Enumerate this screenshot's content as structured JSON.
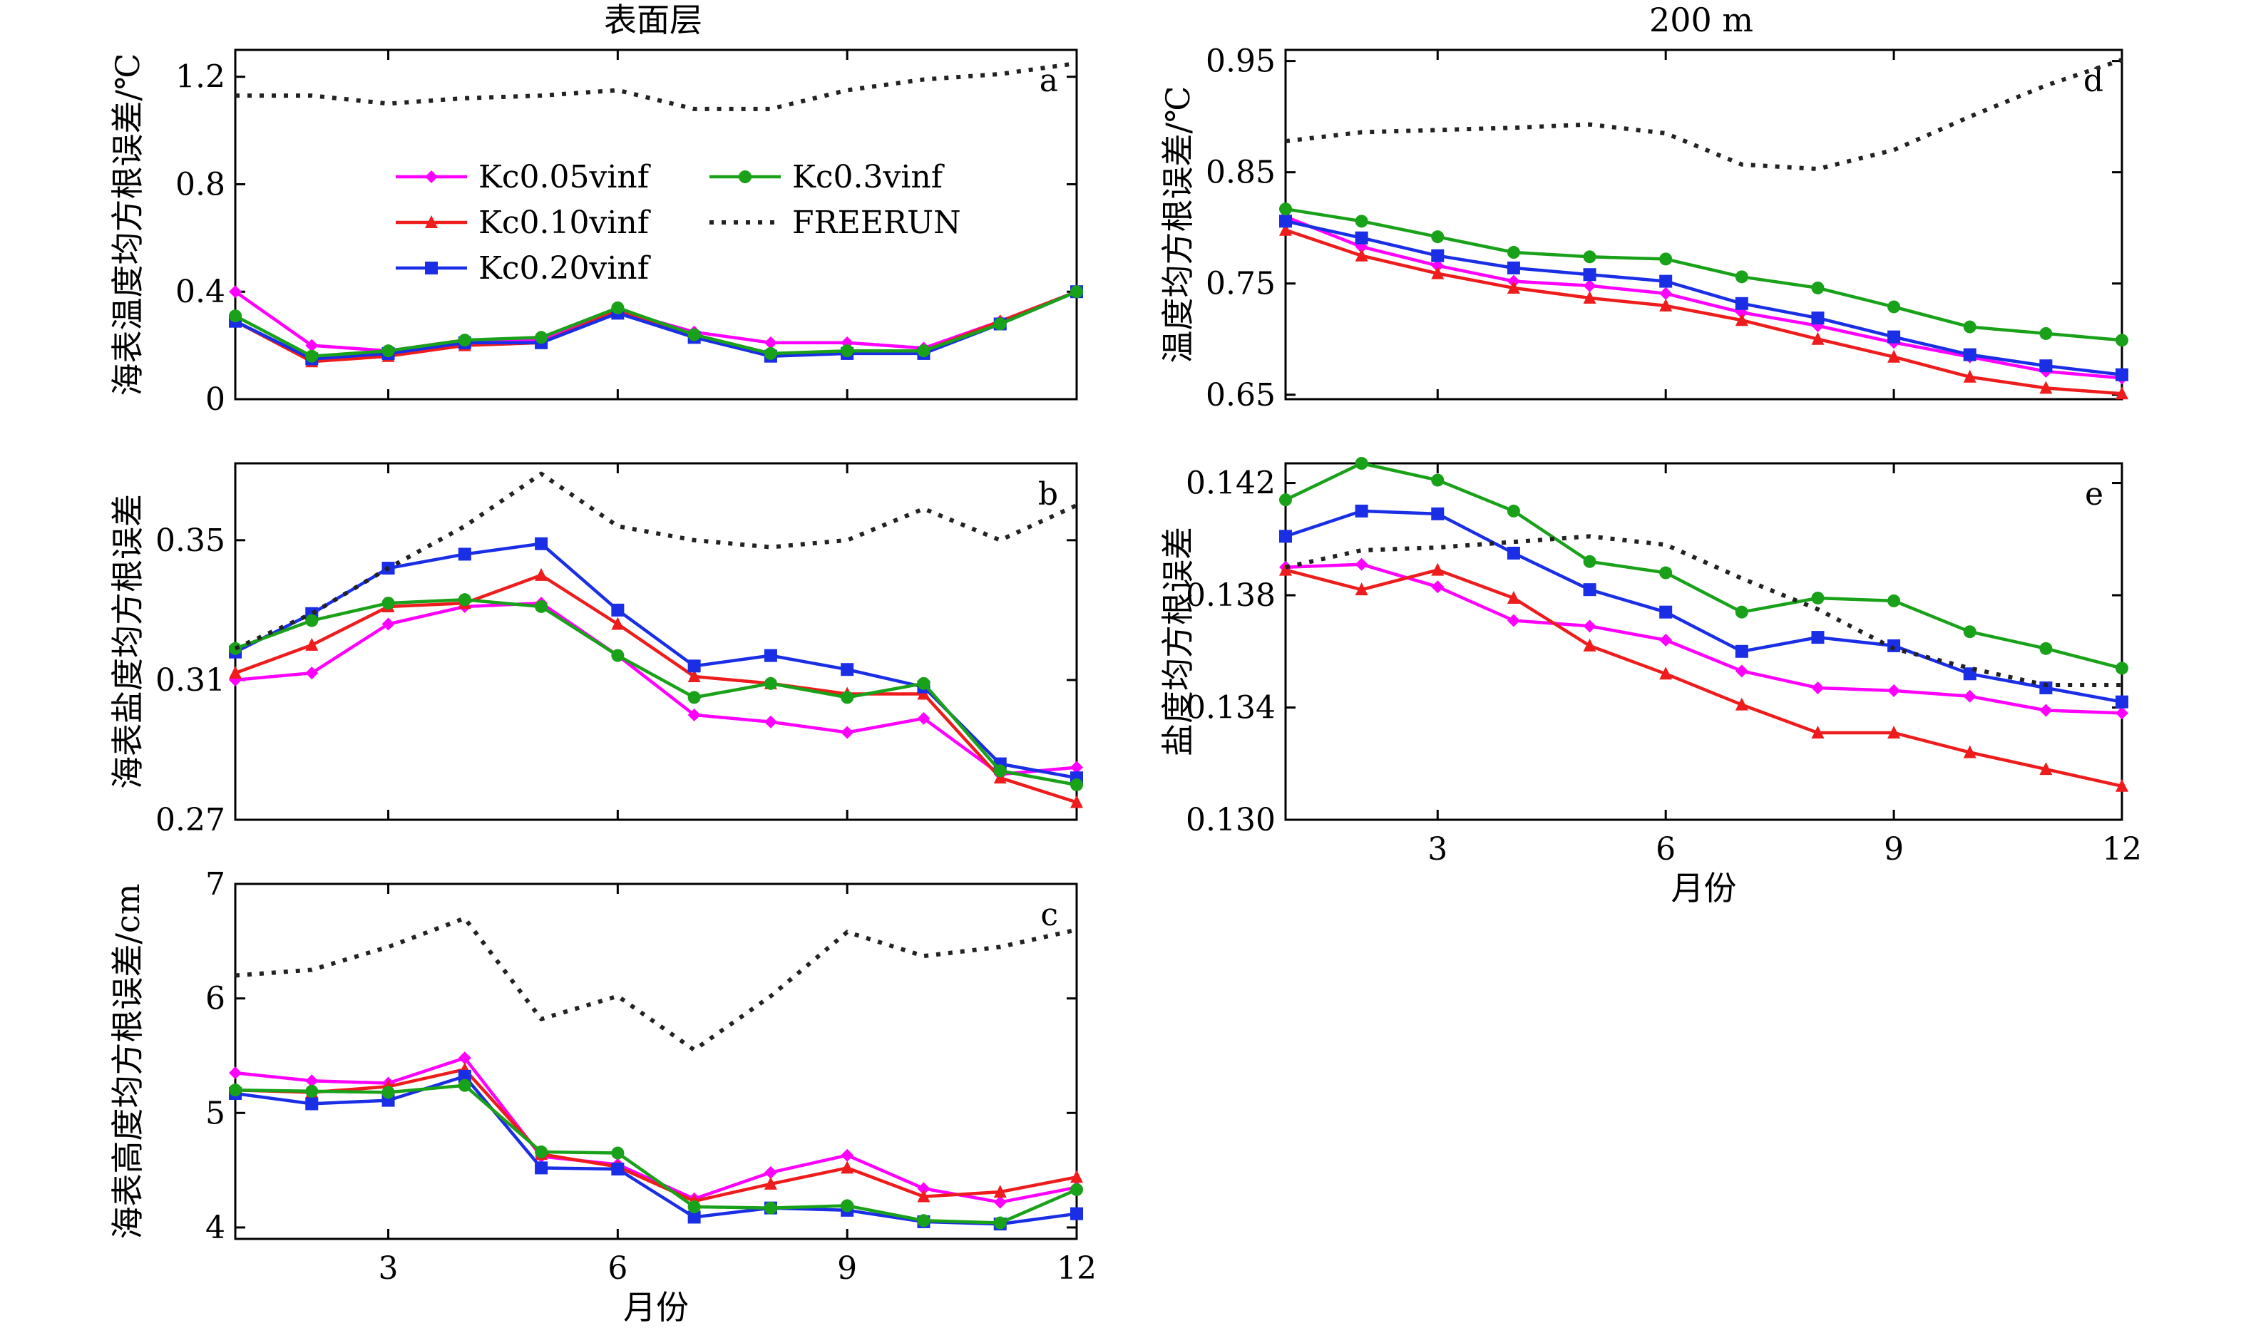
{
  "column_titles": {
    "left": "表面层",
    "right": "200 m"
  },
  "xlabel": "月份",
  "legend": [
    {
      "key": "kc005",
      "label": "Kc0.05vinf"
    },
    {
      "key": "kc010",
      "label": "Kc0.10vinf"
    },
    {
      "key": "kc020",
      "label": "Kc0.20vinf"
    },
    {
      "key": "kc03",
      "label": "Kc0.3vinf"
    },
    {
      "key": "free",
      "label": "FREERUN"
    }
  ],
  "series_styles": {
    "kc005": {
      "color": "#ff00ff",
      "marker": "diamond",
      "dash": ""
    },
    "kc010": {
      "color": "#ee1c1c",
      "marker": "triangle",
      "dash": ""
    },
    "kc020": {
      "color": "#1a2ee6",
      "marker": "square",
      "dash": ""
    },
    "kc03": {
      "color": "#1aa11a",
      "marker": "circle",
      "dash": ""
    },
    "free": {
      "color": "#222222",
      "marker": "none",
      "dash": "6 11"
    }
  },
  "chart_data": [
    {
      "id": "a",
      "type": "line",
      "letter": "a",
      "ylabel": "海表温度均方根误差/℃",
      "x": [
        1,
        2,
        3,
        4,
        5,
        6,
        7,
        8,
        9,
        10,
        11,
        12
      ],
      "xlim": [
        1,
        12
      ],
      "xticks": [
        3,
        6,
        9,
        12
      ],
      "show_xticklabels": false,
      "ylim": [
        0,
        1.3
      ],
      "yticks": [
        0,
        0.4,
        0.8,
        1.2
      ],
      "ytick_labels": [
        "0",
        "0.4",
        "0.8",
        "1.2"
      ],
      "series": [
        {
          "key": "kc005",
          "values": [
            0.4,
            0.2,
            0.18,
            0.22,
            0.22,
            0.33,
            0.25,
            0.21,
            0.21,
            0.19,
            0.29,
            0.4
          ]
        },
        {
          "key": "kc010",
          "values": [
            0.29,
            0.14,
            0.16,
            0.2,
            0.21,
            0.33,
            0.24,
            0.17,
            0.17,
            0.18,
            0.29,
            0.4
          ]
        },
        {
          "key": "kc020",
          "values": [
            0.29,
            0.15,
            0.17,
            0.21,
            0.21,
            0.32,
            0.23,
            0.16,
            0.17,
            0.17,
            0.28,
            0.4
          ]
        },
        {
          "key": "kc03",
          "values": [
            0.31,
            0.16,
            0.18,
            0.22,
            0.23,
            0.34,
            0.24,
            0.17,
            0.18,
            0.18,
            0.28,
            0.4
          ]
        },
        {
          "key": "free",
          "values": [
            1.13,
            1.13,
            1.1,
            1.12,
            1.13,
            1.15,
            1.08,
            1.08,
            1.15,
            1.19,
            1.21,
            1.25
          ]
        }
      ]
    },
    {
      "id": "b",
      "type": "line",
      "letter": "b",
      "ylabel": "海表盐度均方根误差",
      "x": [
        1,
        2,
        3,
        4,
        5,
        6,
        7,
        8,
        9,
        10,
        11,
        12
      ],
      "xlim": [
        1,
        12
      ],
      "xticks": [
        3,
        6,
        9,
        12
      ],
      "show_xticklabels": false,
      "ylim": [
        0.27,
        0.372
      ],
      "yticks": [
        0.27,
        0.31,
        0.35
      ],
      "ytick_labels": [
        "0.27",
        "0.31",
        "0.35"
      ],
      "series": [
        {
          "key": "kc005",
          "values": [
            0.31,
            0.312,
            0.326,
            0.331,
            0.332,
            0.317,
            0.3,
            0.298,
            0.295,
            0.299,
            0.283,
            0.285
          ]
        },
        {
          "key": "kc010",
          "values": [
            0.312,
            0.32,
            0.331,
            0.332,
            0.34,
            0.326,
            0.311,
            0.309,
            0.306,
            0.306,
            0.282,
            0.275
          ]
        },
        {
          "key": "kc020",
          "values": [
            0.318,
            0.329,
            0.342,
            0.346,
            0.349,
            0.33,
            0.314,
            0.317,
            0.313,
            0.308,
            0.286,
            0.282
          ]
        },
        {
          "key": "kc03",
          "values": [
            0.319,
            0.327,
            0.332,
            0.333,
            0.331,
            0.317,
            0.305,
            0.309,
            0.305,
            0.309,
            0.284,
            0.28
          ]
        },
        {
          "key": "free",
          "values": [
            0.319,
            0.329,
            0.342,
            0.354,
            0.369,
            0.354,
            0.35,
            0.348,
            0.35,
            0.359,
            0.35,
            0.36
          ]
        }
      ]
    },
    {
      "id": "c",
      "type": "line",
      "letter": "c",
      "ylabel": "海表高度均方根误差/cm",
      "xlabel": "月份",
      "x": [
        1,
        2,
        3,
        4,
        5,
        6,
        7,
        8,
        9,
        10,
        11,
        12
      ],
      "xlim": [
        1,
        12
      ],
      "xticks": [
        3,
        6,
        9,
        12
      ],
      "show_xticklabels": true,
      "xtick_labels": [
        "3",
        "6",
        "9",
        "12"
      ],
      "ylim": [
        3.9,
        7.0
      ],
      "yticks": [
        4,
        5,
        6,
        7
      ],
      "ytick_labels": [
        "4",
        "5",
        "6",
        "7"
      ],
      "series": [
        {
          "key": "kc005",
          "values": [
            5.35,
            5.28,
            5.26,
            5.48,
            4.62,
            4.55,
            4.25,
            4.48,
            4.63,
            4.34,
            4.22,
            4.35
          ]
        },
        {
          "key": "kc010",
          "values": [
            5.2,
            5.18,
            5.23,
            5.38,
            4.64,
            4.53,
            4.23,
            4.38,
            4.52,
            4.27,
            4.31,
            4.44
          ]
        },
        {
          "key": "kc020",
          "values": [
            5.17,
            5.08,
            5.11,
            5.32,
            4.52,
            4.51,
            4.09,
            4.17,
            4.15,
            4.05,
            4.03,
            4.12
          ]
        },
        {
          "key": "kc03",
          "values": [
            5.2,
            5.19,
            5.18,
            5.24,
            4.66,
            4.65,
            4.18,
            4.17,
            4.19,
            4.06,
            4.04,
            4.33
          ]
        },
        {
          "key": "free",
          "values": [
            6.2,
            6.25,
            6.45,
            6.7,
            5.82,
            6.02,
            5.55,
            6.02,
            6.58,
            6.37,
            6.45,
            6.6
          ]
        }
      ]
    },
    {
      "id": "d",
      "type": "line",
      "letter": "d",
      "ylabel": "温度均方根误差/℃",
      "x": [
        1,
        2,
        3,
        4,
        5,
        6,
        7,
        8,
        9,
        10,
        11,
        12
      ],
      "xlim": [
        1,
        12
      ],
      "xticks": [
        3,
        6,
        9,
        12
      ],
      "show_xticklabels": false,
      "ylim": [
        0.646,
        0.96
      ],
      "yticks": [
        0.65,
        0.75,
        0.85,
        0.95
      ],
      "ytick_labels": [
        "0.65",
        "0.75",
        "0.85",
        "0.95"
      ],
      "series": [
        {
          "key": "kc005",
          "values": [
            0.81,
            0.783,
            0.766,
            0.752,
            0.748,
            0.741,
            0.724,
            0.712,
            0.697,
            0.684,
            0.671,
            0.665
          ]
        },
        {
          "key": "kc010",
          "values": [
            0.798,
            0.775,
            0.759,
            0.746,
            0.737,
            0.73,
            0.717,
            0.7,
            0.684,
            0.666,
            0.656,
            0.651
          ]
        },
        {
          "key": "kc020",
          "values": [
            0.806,
            0.791,
            0.775,
            0.764,
            0.758,
            0.752,
            0.732,
            0.719,
            0.702,
            0.686,
            0.676,
            0.668
          ]
        },
        {
          "key": "kc03",
          "values": [
            0.817,
            0.806,
            0.792,
            0.778,
            0.774,
            0.772,
            0.756,
            0.746,
            0.729,
            0.711,
            0.705,
            0.699
          ]
        },
        {
          "key": "free",
          "values": [
            0.878,
            0.886,
            0.888,
            0.89,
            0.893,
            0.885,
            0.857,
            0.853,
            0.87,
            0.9,
            0.928,
            0.951
          ]
        }
      ]
    },
    {
      "id": "e",
      "type": "line",
      "letter": "e",
      "ylabel": "盐度均方根误差",
      "xlabel": "月份",
      "x": [
        1,
        2,
        3,
        4,
        5,
        6,
        7,
        8,
        9,
        10,
        11,
        12
      ],
      "xlim": [
        1,
        12
      ],
      "xticks": [
        3,
        6,
        9,
        12
      ],
      "show_xticklabels": true,
      "xtick_labels": [
        "3",
        "6",
        "9",
        "12"
      ],
      "ylim": [
        0.13,
        0.1427
      ],
      "yticks": [
        0.13,
        0.134,
        0.138,
        0.142
      ],
      "ytick_labels": [
        "0.130",
        "0.134",
        "0.138",
        "0.142"
      ],
      "series": [
        {
          "key": "kc005",
          "values": [
            0.139,
            0.1391,
            0.1383,
            0.1371,
            0.1369,
            0.1364,
            0.1353,
            0.1347,
            0.1346,
            0.1344,
            0.1339,
            0.1338
          ]
        },
        {
          "key": "kc010",
          "values": [
            0.1389,
            0.1382,
            0.1389,
            0.1379,
            0.1362,
            0.1352,
            0.1341,
            0.1331,
            0.1331,
            0.1324,
            0.1318,
            0.1312
          ]
        },
        {
          "key": "kc020",
          "values": [
            0.1401,
            0.141,
            0.1409,
            0.1395,
            0.1382,
            0.1374,
            0.136,
            0.1365,
            0.1362,
            0.1352,
            0.1347,
            0.1342
          ]
        },
        {
          "key": "kc03",
          "values": [
            0.1414,
            0.1427,
            0.1421,
            0.141,
            0.1392,
            0.1388,
            0.1374,
            0.1379,
            0.1378,
            0.1367,
            0.1361,
            0.1354
          ]
        },
        {
          "key": "free",
          "values": [
            0.139,
            0.1396,
            0.1397,
            0.1399,
            0.1401,
            0.1398,
            0.1386,
            0.1375,
            0.1361,
            0.1354,
            0.1348,
            0.1348
          ]
        }
      ]
    }
  ]
}
